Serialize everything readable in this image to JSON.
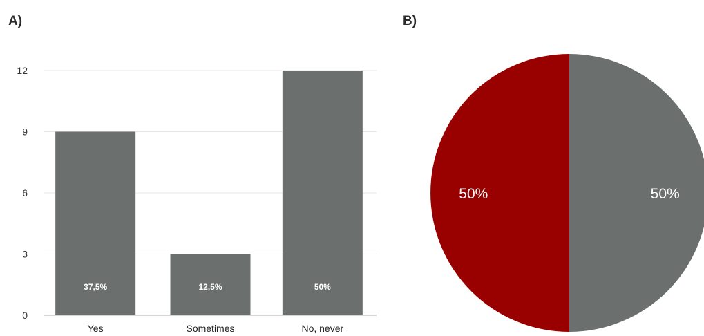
{
  "panels": {
    "a_label": "A)",
    "b_label": "B)"
  },
  "chart_data": [
    {
      "type": "bar",
      "categories": [
        "Yes",
        "Sometimes",
        "No, never"
      ],
      "values": [
        9,
        3,
        12
      ],
      "data_labels": [
        "37,5%",
        "12,5%",
        "50%"
      ],
      "ylim": [
        0,
        12
      ],
      "yticks": [
        0,
        3,
        6,
        9,
        12
      ],
      "grid": true,
      "colors": {
        "bar": "#6b706f",
        "grid": "#e6e6e6",
        "axis": "#bdbdbd"
      }
    },
    {
      "type": "pie",
      "slices": [
        {
          "value": 50,
          "label": "50%",
          "color": "#6b706f"
        },
        {
          "value": 50,
          "label": "50%",
          "color": "#990000"
        }
      ]
    }
  ]
}
